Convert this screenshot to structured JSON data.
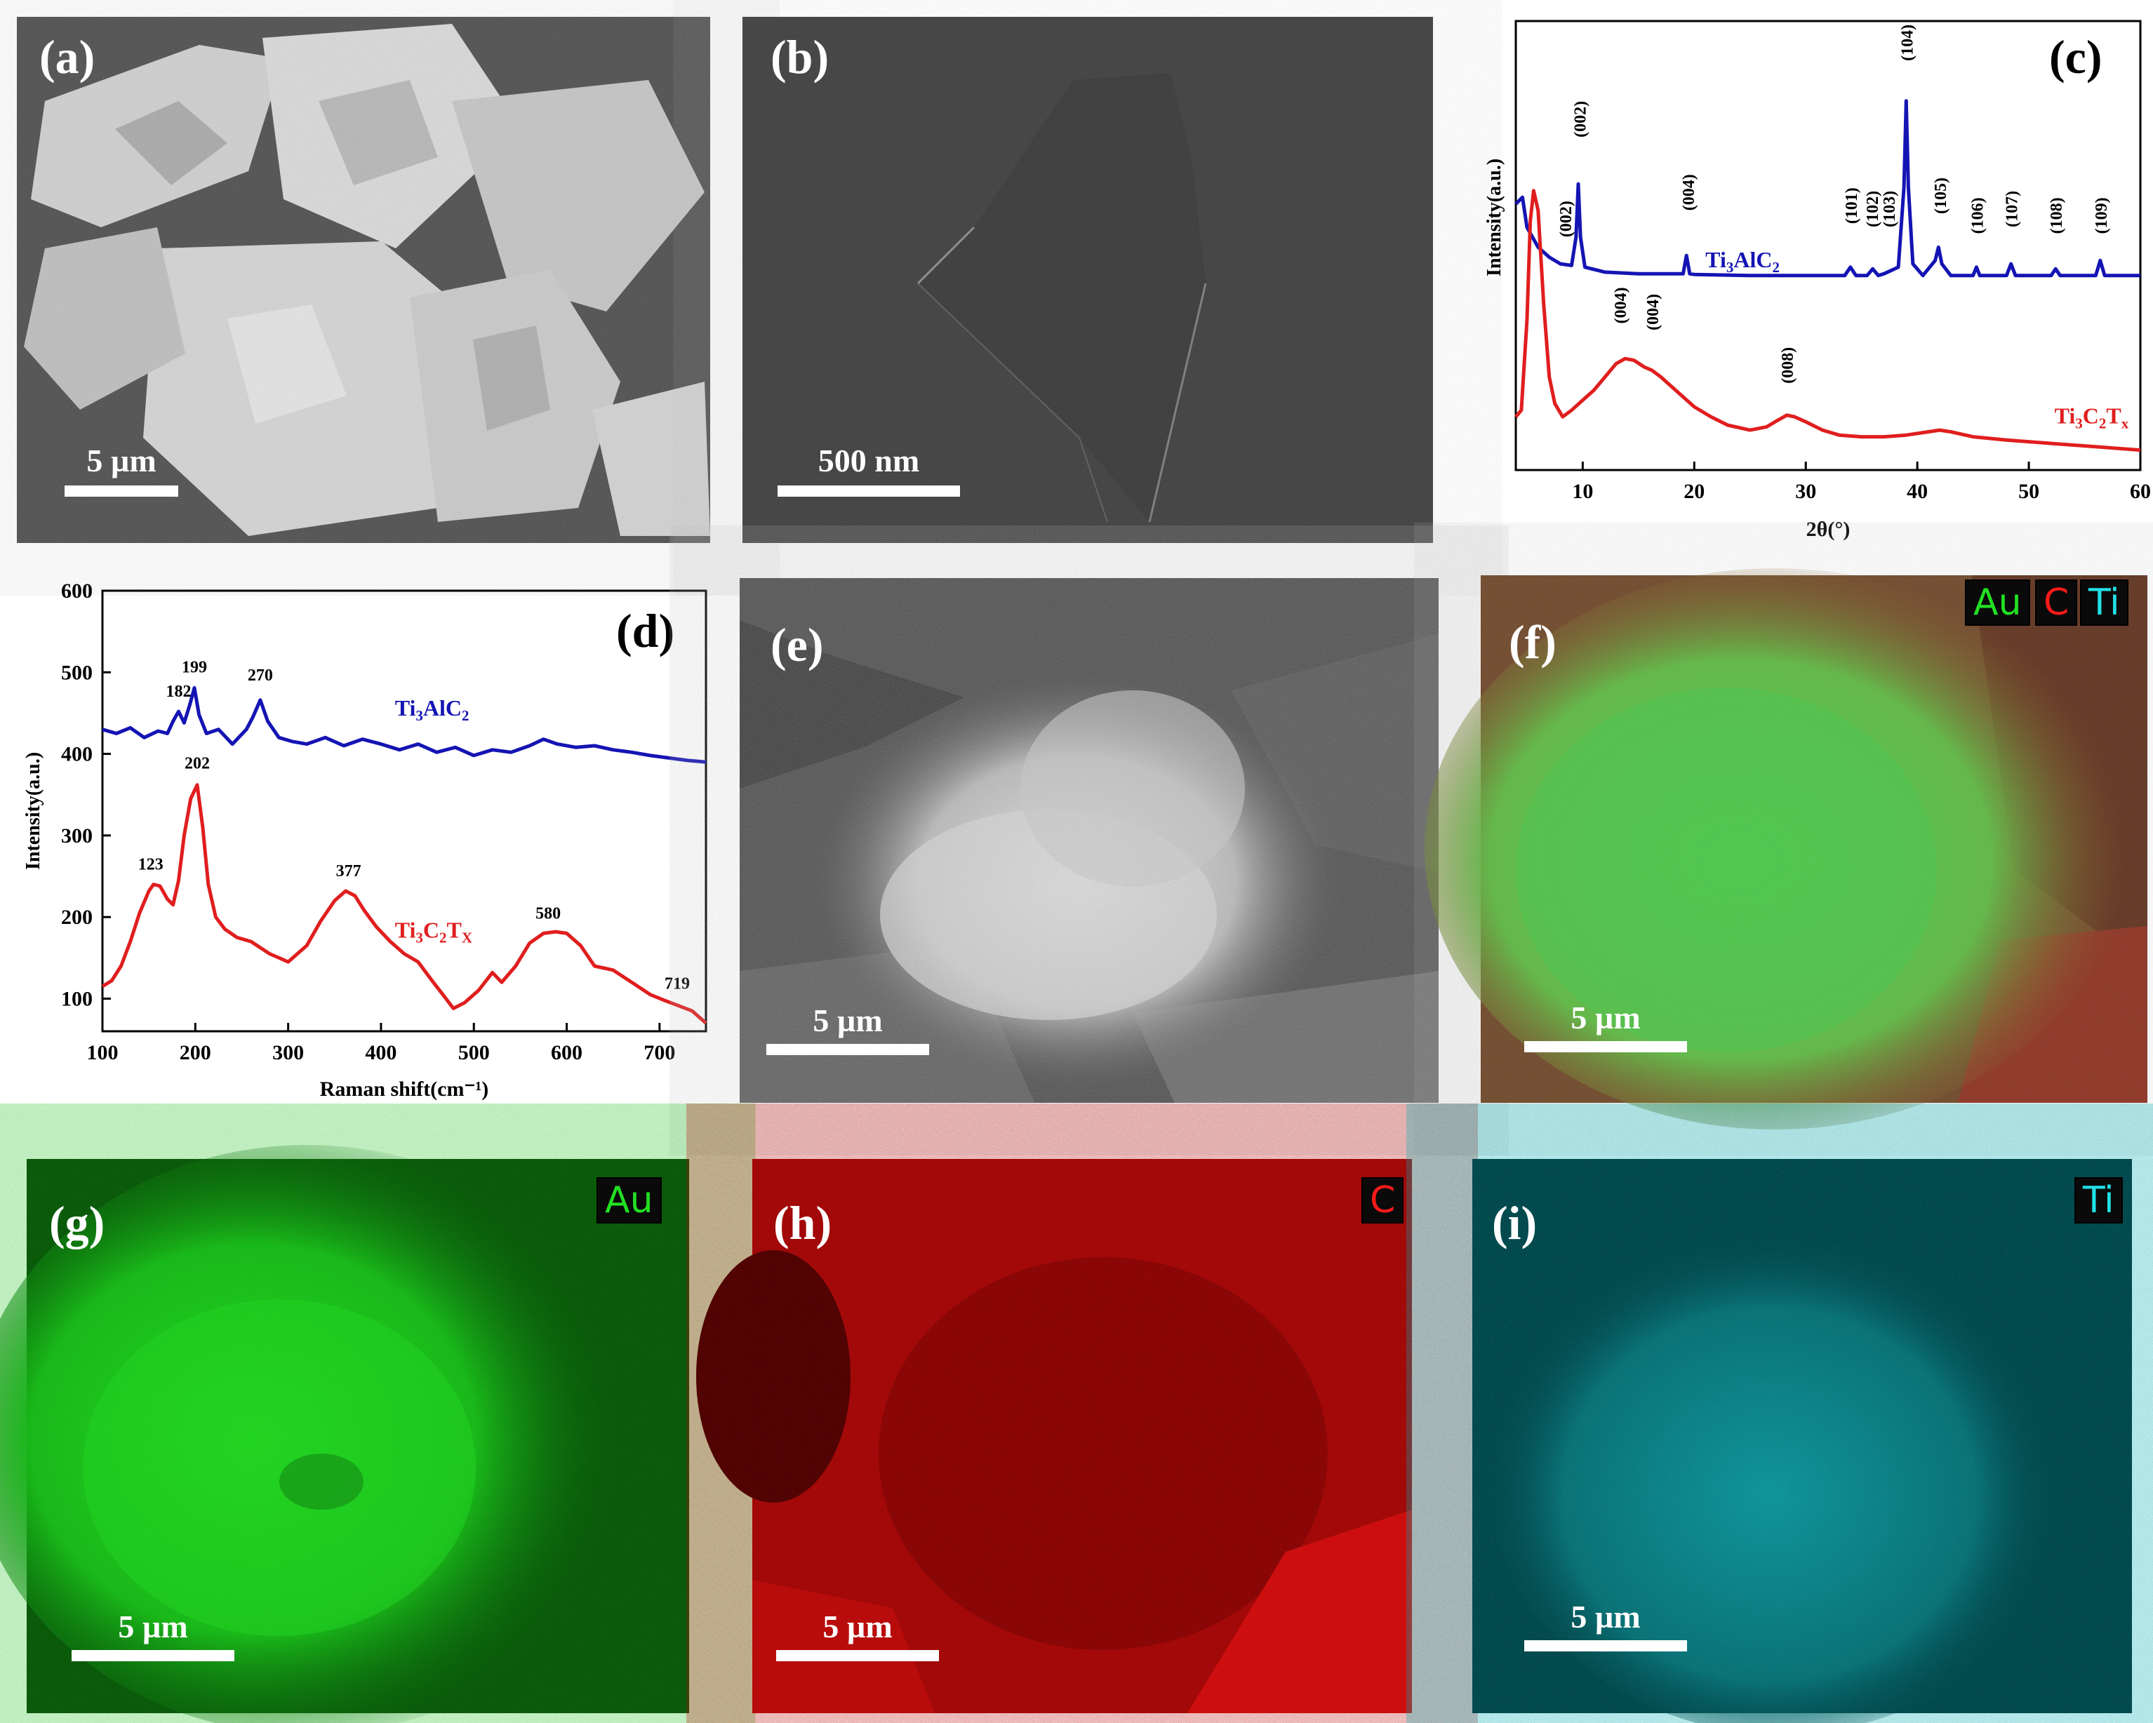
{
  "panels": {
    "a": {
      "label": "(a)",
      "scale": "5 µm"
    },
    "b": {
      "label": "(b)",
      "scale": "500 nm"
    },
    "c": {
      "label": "(c)"
    },
    "d": {
      "label": "(d)"
    },
    "e": {
      "label": "(e)",
      "scale": "5 µm"
    },
    "f": {
      "label": "(f)",
      "scale": "5 µm",
      "badges": [
        "Au",
        "C",
        "Ti"
      ]
    },
    "g": {
      "label": "(g)",
      "scale": "5 µm",
      "badge": "Au"
    },
    "h": {
      "label": "(h)",
      "scale": "5 µm",
      "badge": "C"
    },
    "i": {
      "label": "(i)",
      "scale": "5 µm",
      "badge": "Ti"
    }
  },
  "colors": {
    "au": "#22e022",
    "c": "#ff1a1a",
    "ti": "#22e0e6",
    "blue": "#1414b4",
    "red": "#e01e1e"
  },
  "chart_data": [
    {
      "id": "c",
      "type": "line",
      "xlabel": "2θ(°)",
      "ylabel": "Intensity(a.u.)",
      "xlim": [
        4,
        60
      ],
      "xticks": [
        "10",
        "20",
        "30",
        "40",
        "50",
        "60"
      ],
      "series": [
        {
          "name": "Ti3AlC2",
          "name_parts": [
            "Ti",
            "3",
            "AlC",
            "2"
          ],
          "color": "#1414b4",
          "x": [
            4,
            4.6,
            5,
            6,
            7,
            8,
            9,
            9.4,
            9.6,
            9.8,
            10.2,
            12,
            15,
            19,
            19.3,
            19.6,
            20,
            25,
            30,
            33.5,
            34,
            34.5,
            35.5,
            36,
            36.5,
            37,
            38.3,
            38.8,
            39.0,
            39.2,
            39.6,
            40.5,
            41.6,
            41.9,
            42.2,
            43,
            45,
            45.3,
            45.6,
            48,
            48.4,
            48.8,
            52,
            52.4,
            52.8,
            56,
            56.4,
            56.8,
            60
          ],
          "y": [
            40,
            42,
            33,
            27,
            24,
            22,
            21.5,
            30,
            46,
            30,
            21,
            19.5,
            19,
            19,
            24.5,
            19,
            18.8,
            18.5,
            18.5,
            18.5,
            21,
            18.5,
            18.5,
            20.5,
            18.5,
            19,
            21,
            45,
            71,
            45,
            22,
            18.5,
            23,
            27,
            22,
            18.5,
            18.5,
            21,
            18.5,
            18.5,
            22,
            18.5,
            18.5,
            20.5,
            18.5,
            18.5,
            23,
            18.5,
            18.5
          ]
        },
        {
          "name": "Ti3C2Tx",
          "name_parts": [
            "Ti",
            "3",
            "C",
            "2",
            "T",
            "x"
          ],
          "color": "#e01e1e",
          "x": [
            4,
            4.5,
            5,
            5.3,
            5.6,
            6.0,
            6.5,
            7,
            7.5,
            8.2,
            9,
            10,
            11,
            12,
            13,
            13.8,
            14.6,
            15.5,
            16.2,
            17,
            18,
            19,
            20,
            21.5,
            23,
            25,
            26.5,
            27.5,
            28.3,
            29,
            30,
            31.5,
            33,
            35,
            37,
            39,
            41,
            42,
            43,
            45,
            48,
            52,
            56,
            60
          ],
          "y": [
            -24,
            -22,
            5,
            35,
            44,
            38,
            10,
            -12,
            -20,
            -24,
            -22,
            -19,
            -16,
            -12,
            -8,
            -6.5,
            -7,
            -9,
            -10,
            -12,
            -15,
            -18,
            -21,
            -24,
            -26.5,
            -28,
            -27,
            -25,
            -23.5,
            -24,
            -25.5,
            -28,
            -29.5,
            -30,
            -30,
            -29.5,
            -28.5,
            -28,
            -28.5,
            -30,
            -31,
            -32,
            -33,
            -34
          ]
        }
      ],
      "annotations": [
        {
          "text": "(002)",
          "x": 9.7,
          "y": 60
        },
        {
          "text": "(004)",
          "x": 19.4,
          "y": 38
        },
        {
          "text": "(101)",
          "x": 34.0,
          "y": 34
        },
        {
          "text": "(102)",
          "x": 35.9,
          "y": 33
        },
        {
          "text": "(103)",
          "x": 37.4,
          "y": 33
        },
        {
          "text": "(104)",
          "x": 39.0,
          "y": 83
        },
        {
          "text": "(105)",
          "x": 42.0,
          "y": 37
        },
        {
          "text": "(106)",
          "x": 45.3,
          "y": 31
        },
        {
          "text": "(107)",
          "x": 48.4,
          "y": 33
        },
        {
          "text": "(108)",
          "x": 52.4,
          "y": 31
        },
        {
          "text": "(109)",
          "x": 56.4,
          "y": 31
        },
        {
          "text": "(002)",
          "x": 8.4,
          "y": 30
        },
        {
          "text": "(004)",
          "x": 13.3,
          "y": 4
        },
        {
          "text": "(004)",
          "x": 16.2,
          "y": 2
        },
        {
          "text": "(008)",
          "x": 28.3,
          "y": -14
        }
      ]
    },
    {
      "id": "d",
      "type": "line",
      "xlabel": "Raman shift(cm⁻¹)",
      "ylabel": "Intensity(a.u.)",
      "xlim": [
        100,
        750
      ],
      "ylim": [
        60,
        600
      ],
      "xticks": [
        "100",
        "200",
        "300",
        "400",
        "500",
        "600",
        "700"
      ],
      "yticks": [
        "100",
        "200",
        "300",
        "400",
        "500",
        "600"
      ],
      "series": [
        {
          "name": "Ti3AlC2",
          "name_parts": [
            "Ti",
            "3",
            "AlC",
            "2"
          ],
          "color": "#1414b4",
          "x": [
            100,
            115,
            130,
            145,
            160,
            170,
            176,
            182,
            188,
            194,
            199,
            204,
            212,
            225,
            240,
            255,
            262,
            270,
            278,
            290,
            305,
            320,
            340,
            360,
            380,
            400,
            420,
            440,
            460,
            480,
            500,
            520,
            540,
            560,
            575,
            590,
            610,
            630,
            650,
            670,
            690,
            710,
            730,
            750
          ],
          "y": [
            430,
            425,
            432,
            420,
            428,
            425,
            440,
            452,
            438,
            460,
            481,
            448,
            425,
            430,
            412,
            430,
            445,
            466,
            440,
            420,
            415,
            412,
            420,
            410,
            418,
            412,
            405,
            412,
            402,
            408,
            398,
            405,
            402,
            410,
            418,
            412,
            408,
            410,
            405,
            402,
            398,
            395,
            392,
            390
          ]
        },
        {
          "name": "Ti3C2TX",
          "name_parts": [
            "Ti",
            "3",
            "C",
            "2",
            "T",
            "X"
          ],
          "color": "#e01e1e",
          "x": [
            100,
            110,
            120,
            130,
            140,
            150,
            155,
            162,
            170,
            176,
            182,
            188,
            195,
            202,
            208,
            214,
            222,
            232,
            245,
            260,
            280,
            300,
            320,
            335,
            350,
            362,
            372,
            382,
            395,
            410,
            425,
            440,
            455,
            470,
            478,
            490,
            505,
            520,
            530,
            545,
            560,
            575,
            588,
            600,
            615,
            630,
            650,
            670,
            690,
            705,
            719,
            735,
            750
          ],
          "y": [
            115,
            122,
            140,
            170,
            205,
            232,
            240,
            238,
            222,
            215,
            245,
            300,
            345,
            362,
            310,
            240,
            200,
            185,
            175,
            170,
            155,
            145,
            165,
            195,
            220,
            232,
            226,
            208,
            188,
            170,
            155,
            145,
            122,
            100,
            88,
            95,
            110,
            132,
            120,
            140,
            168,
            180,
            182,
            180,
            165,
            140,
            135,
            120,
            105,
            98,
            92,
            85,
            70
          ]
        }
      ],
      "annotations": [
        {
          "text": "182",
          "x": 182,
          "y": 470
        },
        {
          "text": "199",
          "x": 199,
          "y": 500
        },
        {
          "text": "270",
          "x": 270,
          "y": 490
        },
        {
          "text": "202",
          "x": 202,
          "y": 382
        },
        {
          "text": "123",
          "x": 152,
          "y": 258
        },
        {
          "text": "377",
          "x": 365,
          "y": 250
        },
        {
          "text": "580",
          "x": 580,
          "y": 198
        },
        {
          "text": "719",
          "x": 719,
          "y": 112
        }
      ]
    }
  ]
}
